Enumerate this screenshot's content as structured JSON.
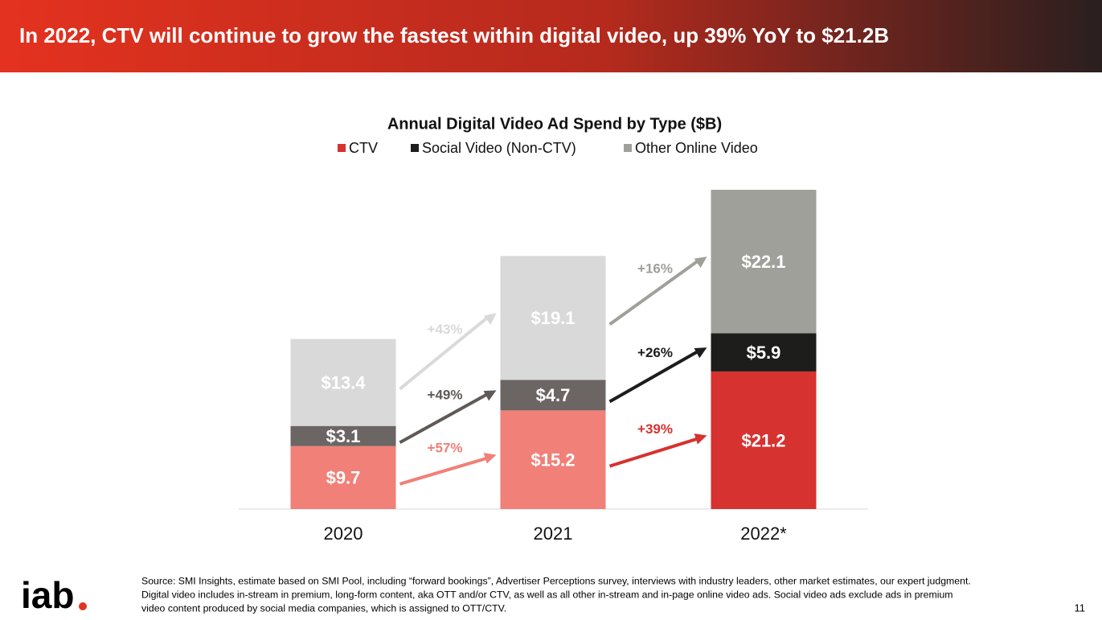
{
  "header": {
    "title": "In 2022, CTV will continue to grow the fastest within digital video, up 39% YoY to $21.2B"
  },
  "chart_data": {
    "type": "stacked_bar",
    "title": "Annual Digital Video Ad Spend by Type ($B)",
    "categories": [
      "2020",
      "2021",
      "2022*"
    ],
    "series": [
      {
        "name": "CTV",
        "color": "#d63230",
        "colors": [
          "#f08078",
          "#f08078",
          "#d63230"
        ],
        "values": [
          9.7,
          15.2,
          21.2
        ],
        "value_labels": [
          "$9.7",
          "$15.2",
          "$21.2"
        ],
        "growth": [
          "+57%",
          "+39%"
        ],
        "growth_colors": [
          "#f08078",
          "#d63230"
        ]
      },
      {
        "name": "Social Video (Non-CTV)",
        "color": "#1d1d1b",
        "colors": [
          "#6b6563",
          "#6b6563",
          "#1d1d1b"
        ],
        "values": [
          3.1,
          4.7,
          5.9
        ],
        "value_labels": [
          "$3.1",
          "$4.7",
          "$5.9"
        ],
        "growth": [
          "+49%",
          "+26%"
        ],
        "growth_colors": [
          "#5f5a58",
          "#1d1d1b"
        ]
      },
      {
        "name": "Other Online Video",
        "color": "#a0a09b",
        "colors": [
          "#d9d9d9",
          "#d9d9d9",
          "#a0a09b"
        ],
        "values": [
          13.4,
          19.1,
          22.1
        ],
        "value_labels": [
          "$13.4",
          "$19.1",
          "$22.1"
        ],
        "growth": [
          "+43%",
          "+16%"
        ],
        "growth_colors": [
          "#d9d9d9",
          "#a0a09b"
        ]
      }
    ]
  },
  "footer": {
    "logo": "iab",
    "page": "11",
    "source": [
      "Source: SMI Insights, estimate based on SMI Pool, including “forward bookings”, Advertiser Perceptions survey, interviews with industry leaders, other market estimates, our expert judgment.",
      "Digital video includes in-stream in premium, long-form content, aka OTT and/or CTV, as well as all other in-stream and in-page online video ads. Social video ads exclude ads in premium",
      "video content produced by social media companies, which is assigned to OTT/CTV."
    ]
  }
}
